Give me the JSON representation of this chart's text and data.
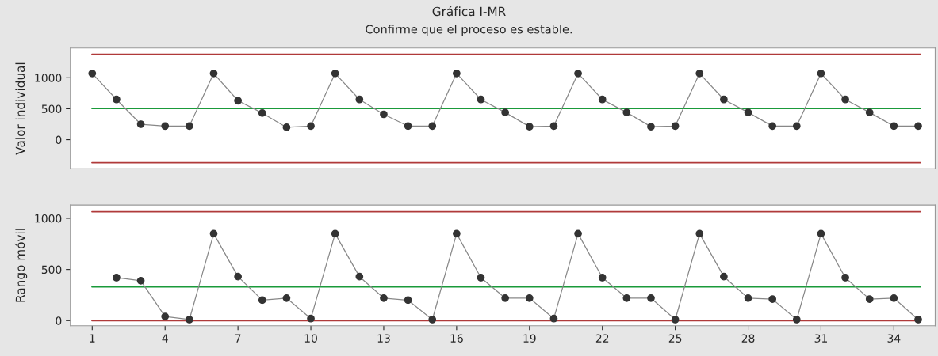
{
  "chart_data": [
    {
      "type": "line",
      "title": "Gráfica I-MR",
      "subtitle": "Confirme que el proceso es estable.",
      "ylabel": "Valor individual",
      "x": [
        1,
        2,
        3,
        4,
        5,
        6,
        7,
        8,
        9,
        10,
        11,
        12,
        13,
        14,
        15,
        16,
        17,
        18,
        19,
        20,
        21,
        22,
        23,
        24,
        25,
        26,
        27,
        28,
        29,
        30,
        31,
        32,
        33,
        34,
        35
      ],
      "series": [
        {
          "color": "#333333",
          "values": [
            1070,
            650,
            250,
            220,
            220,
            1070,
            630,
            430,
            200,
            220,
            1070,
            650,
            410,
            220,
            220,
            1070,
            650,
            440,
            210,
            220,
            1070,
            650,
            440,
            210,
            220,
            1070,
            650,
            440,
            220,
            220,
            1070,
            650,
            440,
            220,
            220
          ]
        }
      ],
      "xlim": [
        0.1,
        35.7
      ],
      "ylim": [
        -470,
        1480
      ],
      "yticks": [
        0,
        500,
        1000
      ],
      "tick_labels": "y",
      "ref_lines": [
        {
          "axis": "y",
          "value": 1380,
          "color": "#b03a3a"
        },
        {
          "axis": "y",
          "value": 505,
          "color": "#1a9a3a"
        },
        {
          "axis": "y",
          "value": -370,
          "color": "#b03a3a"
        }
      ],
      "marker": "circle",
      "line_style": "solid",
      "grid": false
    },
    {
      "type": "line",
      "ylabel": "Rango móvil",
      "series": [
        {
          "color": "#333333",
          "x": [
            2,
            3,
            4,
            5,
            6,
            7,
            8,
            9,
            10,
            11,
            12,
            13,
            14,
            15,
            16,
            17,
            18,
            19,
            20,
            21,
            22,
            23,
            24,
            25,
            26,
            27,
            28,
            29,
            30,
            31,
            32,
            33,
            34,
            35
          ],
          "values": [
            420,
            390,
            40,
            10,
            850,
            430,
            200,
            220,
            20,
            850,
            430,
            220,
            200,
            10,
            850,
            420,
            220,
            220,
            20,
            850,
            420,
            220,
            220,
            10,
            850,
            430,
            220,
            210,
            10,
            850,
            420,
            210,
            220,
            10
          ]
        }
      ],
      "xlim": [
        0.1,
        35.7
      ],
      "xticks": [
        1,
        4,
        7,
        10,
        13,
        16,
        19,
        22,
        25,
        28,
        31,
        34
      ],
      "ylim": [
        -50,
        1130
      ],
      "yticks": [
        0,
        500,
        1000
      ],
      "ref_lines": [
        {
          "axis": "y",
          "value": 1065,
          "color": "#b03a3a"
        },
        {
          "axis": "y",
          "value": 330,
          "color": "#1a9a3a"
        },
        {
          "axis": "y",
          "value": 0,
          "color": "#b03a3a"
        }
      ],
      "marker": "circle",
      "line_style": "solid",
      "grid": false
    }
  ]
}
